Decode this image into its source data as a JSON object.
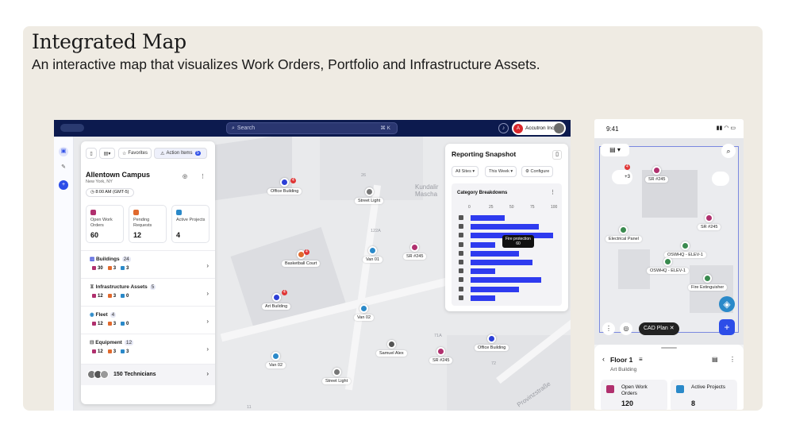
{
  "header": {
    "title": "Integrated Map",
    "subtitle": "An interactive map that visualizes Work Orders, Portfolio and Infrastructure Assets."
  },
  "desktop": {
    "search_placeholder": "Search",
    "search_shortcut": "⌘ K",
    "account": "Accutron Inc.",
    "account_initial": "A",
    "toolbar": {
      "favorites": "Favorites",
      "action_items": "Action Items",
      "action_count": "5"
    },
    "campus": {
      "name": "Allentown Campus",
      "location": "New York, NY",
      "time": "8:00 AM (GMT-5)"
    },
    "stats": [
      {
        "label": "Open Work Orders",
        "value": "60",
        "color": "#b0306e"
      },
      {
        "label": "Pending Requests",
        "value": "12",
        "color": "#e0692d"
      },
      {
        "label": "Active Projects",
        "value": "4",
        "color": "#2a89c9"
      }
    ],
    "sections": [
      {
        "title": "Buildings",
        "count": "24",
        "a": "30",
        "b": "3",
        "c": "3"
      },
      {
        "title": "Infrastructure Assets",
        "count": "5",
        "a": "12",
        "b": "3",
        "c": "0"
      },
      {
        "title": "Fleet",
        "count": "4",
        "a": "12",
        "b": "3",
        "c": "0"
      },
      {
        "title": "Equipment",
        "count": "12",
        "a": "12",
        "b": "3",
        "c": "3"
      }
    ],
    "technicians": "150 Technicians",
    "map_labels": {
      "office1": "Office Building",
      "streetlight1": "Street Light",
      "sr1": "SR #245",
      "van01": "Van 01",
      "basketball": "Basketball Court",
      "art": "Art Building",
      "van02a": "Van 02",
      "van02b": "Van 02",
      "samuel": "Samuel Alex",
      "sr2": "SR #245",
      "office2": "Office Building",
      "streetlight2": "Street Light",
      "kundal": "Kundalir Mascha",
      "provinz": "Provinzstraße",
      "n26": "26",
      "n122a": "122A",
      "n71a": "71A",
      "n72": "72",
      "n11": "11",
      "badge1": "4",
      "badge2": "4",
      "badge3": "4"
    },
    "report": {
      "title": "Reporting Snapshot",
      "filter_sites": "All Sites",
      "filter_week": "This Week",
      "configure": "Configure",
      "chart_title": "Category Breakdowns",
      "tooltip_label": "Fire protection",
      "tooltip_value": "60"
    }
  },
  "chart_data": {
    "type": "bar",
    "orientation": "horizontal",
    "title": "Category Breakdowns",
    "xlim": [
      0,
      100
    ],
    "ticks": [
      "0",
      "25",
      "50",
      "75",
      "100"
    ],
    "values": [
      41,
      83,
      100,
      30,
      59,
      75,
      30,
      86,
      59,
      30
    ]
  },
  "phone": {
    "time": "9:41",
    "labels": {
      "sr1": "SR #245",
      "sr2": "SR #245",
      "electrical": "Electrical Panel",
      "elev1": "OSWHQ - ELEV-1",
      "elev2": "OSWHQ - ELEV-1",
      "fire": "Fire Extinguisher",
      "cluster": "+3",
      "badge": "4"
    },
    "cad_plan": "CAD Plan",
    "floor": "Floor 1",
    "building": "Art Building",
    "stats": [
      {
        "label": "Open Work Orders",
        "value": "120"
      },
      {
        "label": "Active Projects",
        "value": "8"
      }
    ]
  }
}
